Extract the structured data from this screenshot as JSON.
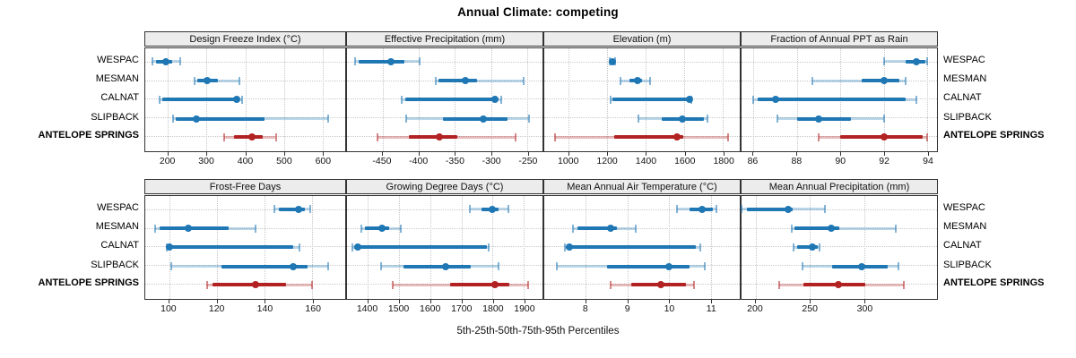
{
  "title": "Annual Climate: competing",
  "caption": "5th-25th-50th-75th-95th Percentiles",
  "colors": {
    "analog_blue": "#1f77b4",
    "target_red": "#b22222",
    "band_alpha": 0.3,
    "grid": "#c6c6c6",
    "strip_bg": "#ececec",
    "panel_border": "#333333"
  },
  "chart_data": {
    "type": "dot-interval",
    "percentile_levels": [
      5,
      25,
      50,
      75,
      95
    ],
    "sites": [
      "WESPAC",
      "MESMAN",
      "CALNAT",
      "SLIPBACK",
      "ANTELOPE SPRINGS"
    ],
    "target_site": "ANTELOPE SPRINGS",
    "layout": {
      "rows": 2,
      "cols": 4,
      "grid": "dotted",
      "legend": "none"
    },
    "panels": [
      {
        "title": "Design Freeze Index (°C)",
        "axis": {
          "min": 141,
          "max": 659,
          "ticks": [
            200,
            300,
            400,
            500,
            600
          ]
        },
        "series": [
          {
            "site": "WESPAC",
            "p": [
              160,
              170,
              195,
              210,
              232
            ]
          },
          {
            "site": "MESMAN",
            "p": [
              268,
              275,
              302,
              330,
              385
            ]
          },
          {
            "site": "CALNAT",
            "p": [
              178,
              186,
              379,
              386,
              391
            ]
          },
          {
            "site": "SLIPBACK",
            "p": [
              213,
              220,
              273,
              450,
              614
            ]
          },
          {
            "site": "ANTELOPE SPRINGS",
            "p": [
              345,
              370,
              418,
              445,
              479
            ]
          }
        ]
      },
      {
        "title": "Effective Precipitation (mm)",
        "axis": {
          "min": -499,
          "max": -229,
          "ticks": [
            -450,
            -400,
            -350,
            -300,
            -250
          ]
        },
        "series": [
          {
            "site": "WESPAC",
            "p": [
              -488,
              -483,
              -438,
              -420,
              -399
            ]
          },
          {
            "site": "MESMAN",
            "p": [
              -377,
              -373,
              -335,
              -320,
              -255
            ]
          },
          {
            "site": "CALNAT",
            "p": [
              -424,
              -419,
              -295,
              -292,
              -286
            ]
          },
          {
            "site": "SLIPBACK",
            "p": [
              -417,
              -367,
              -311,
              -277,
              -248
            ]
          },
          {
            "site": "ANTELOPE SPRINGS",
            "p": [
              -457,
              -413,
              -372,
              -347,
              -266
            ]
          }
        ]
      },
      {
        "title": "Elevation (m)",
        "axis": {
          "min": 872,
          "max": 1887,
          "ticks": [
            1000,
            1200,
            1400,
            1600,
            1800
          ]
        },
        "series": [
          {
            "site": "WESPAC",
            "p": [
              1212,
              1220,
              1226,
              1232,
              1240
            ]
          },
          {
            "site": "MESMAN",
            "p": [
              1268,
              1315,
              1357,
              1380,
              1423
            ]
          },
          {
            "site": "CALNAT",
            "p": [
              1215,
              1225,
              1626,
              1630,
              1634
            ]
          },
          {
            "site": "SLIPBACK",
            "p": [
              1361,
              1480,
              1591,
              1700,
              1718
            ]
          },
          {
            "site": "ANTELOPE SPRINGS",
            "p": [
              926,
              1234,
              1560,
              1595,
              1826
            ]
          }
        ]
      },
      {
        "title": "Fraction of Annual PPT as Rain",
        "axis": {
          "min": 85.45,
          "max": 94.45,
          "ticks": [
            86,
            88,
            90,
            92,
            94
          ]
        },
        "series": [
          {
            "site": "WESPAC",
            "p": [
              92.0,
              93.0,
              93.5,
              93.9,
              94.0
            ]
          },
          {
            "site": "MESMAN",
            "p": [
              88.7,
              91.0,
              92.0,
              92.7,
              93.0
            ]
          },
          {
            "site": "CALNAT",
            "p": [
              86.0,
              86.2,
              87.0,
              93.0,
              93.5
            ]
          },
          {
            "site": "SLIPBACK",
            "p": [
              87.1,
              88.0,
              89.0,
              90.5,
              92.0
            ]
          },
          {
            "site": "ANTELOPE SPRINGS",
            "p": [
              89.0,
              90.0,
              92.0,
              93.8,
              94.0
            ]
          }
        ]
      },
      {
        "title": "Frost-Free Days",
        "axis": {
          "min": 90,
          "max": 173.7,
          "ticks": [
            100,
            120,
            140,
            160
          ]
        },
        "series": [
          {
            "site": "WESPAC",
            "p": [
              144,
              146,
              154,
              157,
              159
            ]
          },
          {
            "site": "MESMAN",
            "p": [
              94,
              96,
              108,
              125,
              136
            ]
          },
          {
            "site": "CALNAT",
            "p": [
              99,
              99.5,
              100,
              152,
              154.5
            ]
          },
          {
            "site": "SLIPBACK",
            "p": [
              101,
              122,
              152,
              158,
              166.5
            ]
          },
          {
            "site": "ANTELOPE SPRINGS",
            "p": [
              116,
              118,
              136,
              149,
              160
            ]
          }
        ]
      },
      {
        "title": "Growing Degree Days (°C)",
        "axis": {
          "min": 1333,
          "max": 1960,
          "ticks": [
            1400,
            1500,
            1600,
            1700,
            1800,
            1900
          ]
        },
        "series": [
          {
            "site": "WESPAC",
            "p": [
              1728,
              1763,
              1798,
              1820,
              1851
            ]
          },
          {
            "site": "MESMAN",
            "p": [
              1379,
              1390,
              1444,
              1468,
              1506
            ]
          },
          {
            "site": "CALNAT",
            "p": [
              1349,
              1356,
              1368,
              1783,
              1787
            ]
          },
          {
            "site": "SLIPBACK",
            "p": [
              1442,
              1515,
              1649,
              1730,
              1820
            ]
          },
          {
            "site": "ANTELOPE SPRINGS",
            "p": [
              1480,
              1663,
              1809,
              1853,
              1915
            ]
          }
        ]
      },
      {
        "title": "Mean Annual Air Temperature (°C)",
        "axis": {
          "min": 7.0,
          "max": 11.7,
          "ticks": [
            8,
            9,
            10,
            11
          ]
        },
        "series": [
          {
            "site": "WESPAC",
            "p": [
              10.2,
              10.5,
              10.8,
              11.05,
              11.15
            ]
          },
          {
            "site": "MESMAN",
            "p": [
              7.7,
              7.8,
              8.6,
              8.75,
              9.2
            ]
          },
          {
            "site": "CALNAT",
            "p": [
              7.5,
              7.55,
              7.6,
              10.65,
              10.75
            ]
          },
          {
            "site": "SLIPBACK",
            "p": [
              7.3,
              8.5,
              10.0,
              10.5,
              10.85
            ]
          },
          {
            "site": "ANTELOPE SPRINGS",
            "p": [
              8.6,
              9.1,
              9.8,
              10.4,
              10.6
            ]
          }
        ]
      },
      {
        "title": "Mean Annual Precipitation (mm)",
        "axis": {
          "min": 187,
          "max": 366.6,
          "ticks": [
            200,
            250,
            300
          ]
        },
        "series": [
          {
            "site": "WESPAC",
            "p": [
              187,
              192,
              230,
              234,
              264
            ]
          },
          {
            "site": "MESMAN",
            "p": [
              233,
              236,
              269,
              277,
              329
            ]
          },
          {
            "site": "CALNAT",
            "p": [
              235,
              238,
              252,
              257,
              259
            ]
          },
          {
            "site": "SLIPBACK",
            "p": [
              243,
              270,
              297,
              321,
              331
            ]
          },
          {
            "site": "ANTELOPE SPRINGS",
            "p": [
              222,
              244,
              276,
              301,
              336
            ]
          }
        ]
      }
    ]
  }
}
